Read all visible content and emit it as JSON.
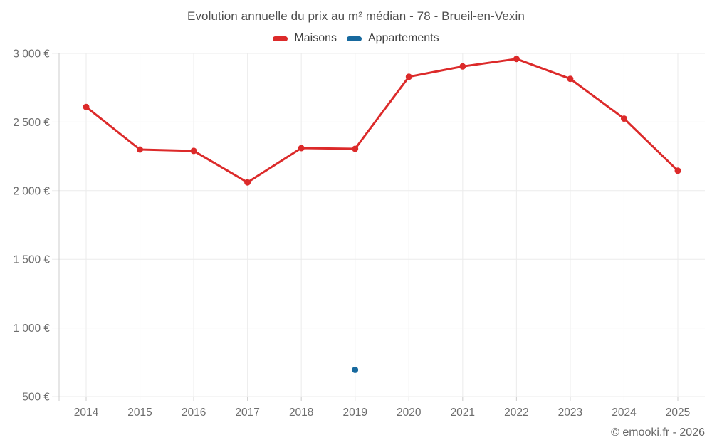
{
  "header": {
    "title": "Evolution annuelle du prix au m² médian - 78 - Brueil-en-Vexin"
  },
  "legend": [
    {
      "label": "Maisons",
      "color": "#dc2a2a"
    },
    {
      "label": "Appartements",
      "color": "#17699e"
    }
  ],
  "footer": {
    "credit": "© emooki.fr - 2026"
  },
  "chart_data": {
    "type": "line",
    "title": "Evolution annuelle du prix au m² médian - 78 - Brueil-en-Vexin",
    "xlabel": "",
    "ylabel": "",
    "categories": [
      "2014",
      "2015",
      "2016",
      "2017",
      "2018",
      "2019",
      "2020",
      "2021",
      "2022",
      "2023",
      "2024",
      "2025"
    ],
    "series": [
      {
        "name": "Maisons",
        "color": "#dc2a2a",
        "values": [
          2610,
          2300,
          2290,
          2060,
          2310,
          2305,
          2830,
          2905,
          2960,
          2815,
          2525,
          2145
        ]
      },
      {
        "name": "Appartements",
        "color": "#17699e",
        "values": [
          null,
          null,
          null,
          null,
          null,
          695,
          null,
          null,
          null,
          null,
          null,
          null
        ]
      }
    ],
    "ylim": [
      500,
      3000
    ],
    "y_ticks": [
      3000,
      2500,
      2000,
      1500,
      1000,
      500
    ],
    "y_tick_labels": [
      "3 000 €",
      "2 500 €",
      "2 000 €",
      "1 500 €",
      "1 000 €",
      "500 €"
    ],
    "grid": true,
    "legend_position": "top",
    "colors": {
      "grid_line": "#ebebeb",
      "axis_line": "#cccccc",
      "tick_label": "#6d6d6d",
      "title_text": "#4f4f4f"
    }
  }
}
